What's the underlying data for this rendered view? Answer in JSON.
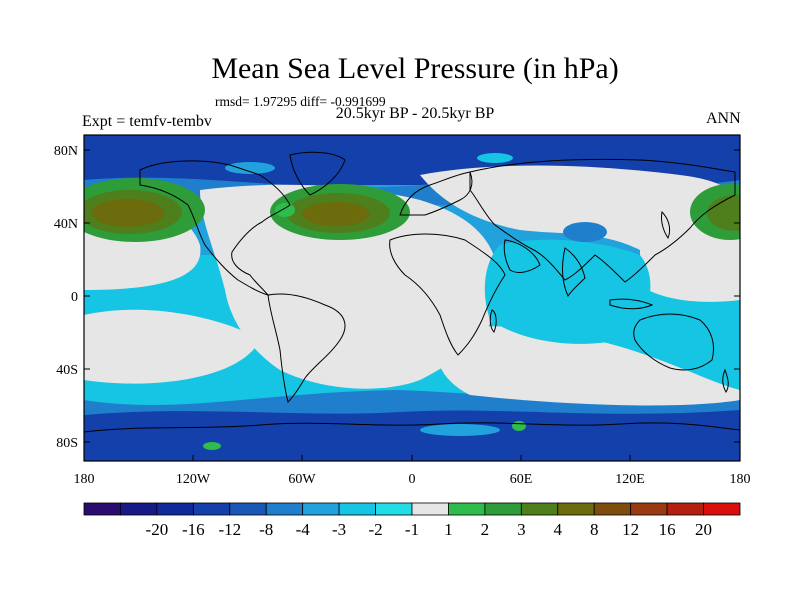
{
  "title": "Mean Sea Level Pressure (in hPa)",
  "stats": "rmsd= 1.97295 diff= -0.991699",
  "subtitle": "20.5kyr BP - 20.5kyr BP",
  "left_label": "Expt = temfv-tembv",
  "right_label": "ANN",
  "lat_ticks": [
    "80N",
    "40N",
    "0",
    "40S",
    "80S"
  ],
  "lon_ticks": [
    "180",
    "120W",
    "60W",
    "0",
    "60E",
    "120E",
    "180"
  ],
  "colorbar": {
    "labels": [
      "-20",
      "-16",
      "-12",
      "-8",
      "-4",
      "-3",
      "-2",
      "-1",
      "1",
      "2",
      "3",
      "4",
      "8",
      "12",
      "16",
      "20"
    ],
    "colors": [
      "#2a0b6e",
      "#151a86",
      "#0f2a9a",
      "#1340aa",
      "#1a58b8",
      "#1f7fcc",
      "#21a2dc",
      "#16c5e3",
      "#22dde6",
      "#e6e6e6",
      "#2ebd4c",
      "#2f9c3a",
      "#4e7f1c",
      "#6d6c0c",
      "#7e4d0e",
      "#9a3a10",
      "#b42010",
      "#d80f0d"
    ]
  },
  "palette": {
    "dark_blue": "#1340aa",
    "mid_blue": "#1f7fcc",
    "light_blue": "#21a2dc",
    "cyan": "#16c5e3",
    "neutral": "#e6e6e6",
    "green": "#2ebd4c",
    "olive": "#4e7f1c",
    "brown": "#6d6c0c"
  }
}
